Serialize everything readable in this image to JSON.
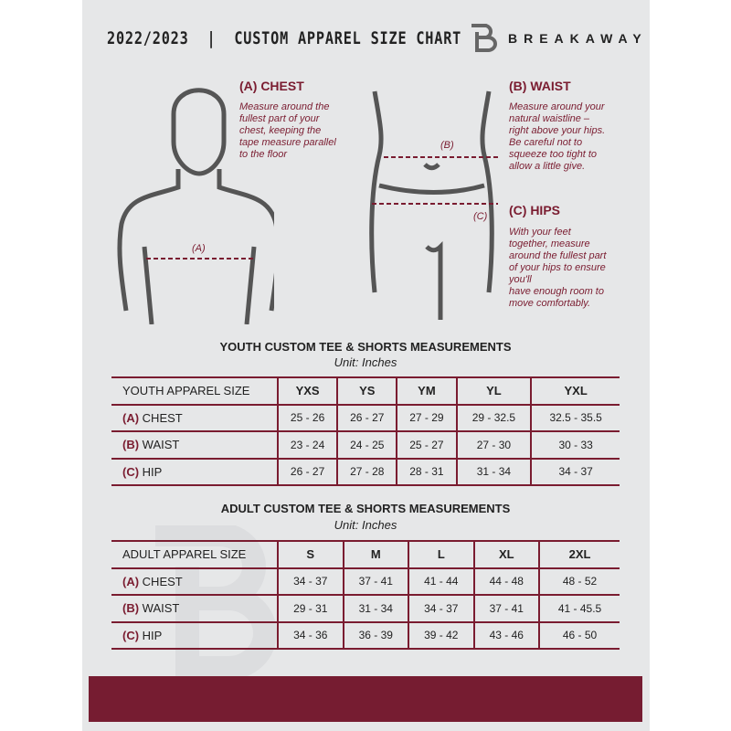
{
  "header": {
    "title": "2022/2023  |  CUSTOM APPAREL SIZE CHART",
    "brand": "BREAKAWAY"
  },
  "measures": {
    "chest": {
      "title": "(A) CHEST",
      "desc": [
        "Measure around the",
        "fullest part of your",
        "chest, keeping the",
        "tape measure parallel",
        "to the floor"
      ],
      "marker": "(A)"
    },
    "waist": {
      "title": "(B) WAIST",
      "desc": [
        "Measure around your",
        "natural waistline –",
        "right above your hips.",
        "Be careful not to",
        "squeeze too tight to",
        "allow a little give."
      ],
      "marker": "(B)"
    },
    "hips": {
      "title": "(C) HIPS",
      "desc": [
        "With your feet",
        "together, measure",
        "around the fullest part",
        "of your hips to ensure",
        "you'll",
        "have enough room to",
        "move comfortably."
      ],
      "marker": "(C)"
    }
  },
  "youth": {
    "title": "YOUTH CUSTOM TEE & SHORTS MEASUREMENTS",
    "unit": "Unit: Inches",
    "header": "YOUTH APPAREL SIZE",
    "sizes": [
      "YXS",
      "YS",
      "YM",
      "YL",
      "YXL"
    ],
    "rows": [
      {
        "letter": "(A)",
        "label": "CHEST",
        "values": [
          "25 - 26",
          "26 - 27",
          "27 - 29",
          "29 - 32.5",
          "32.5 - 35.5"
        ]
      },
      {
        "letter": "(B)",
        "label": "WAIST",
        "values": [
          "23 - 24",
          "24 - 25",
          "25 - 27",
          "27 - 30",
          "30 - 33"
        ]
      },
      {
        "letter": "(C)",
        "label": "HIP",
        "values": [
          "26 - 27",
          "27 - 28",
          "28 - 31",
          "31 - 34",
          "34 - 37"
        ]
      }
    ]
  },
  "adult": {
    "title": "ADULT CUSTOM TEE & SHORTS MEASUREMENTS",
    "unit": "Unit: Inches",
    "header": "ADULT APPAREL SIZE",
    "sizes": [
      "S",
      "M",
      "L",
      "XL",
      "2XL"
    ],
    "rows": [
      {
        "letter": "(A)",
        "label": "CHEST",
        "values": [
          "34 - 37",
          "37 - 41",
          "41 - 44",
          "44 - 48",
          "48 - 52"
        ]
      },
      {
        "letter": "(B)",
        "label": "WAIST",
        "values": [
          "29 - 31",
          "31 - 34",
          "34 - 37",
          "37 - 41",
          "41 - 45.5"
        ]
      },
      {
        "letter": "(C)",
        "label": "HIP",
        "values": [
          "34 - 36",
          "36 - 39",
          "39 - 42",
          "43 - 46",
          "46 - 50"
        ]
      }
    ]
  },
  "colors": {
    "accent": "#761c31",
    "background": "#e6e7e8"
  }
}
